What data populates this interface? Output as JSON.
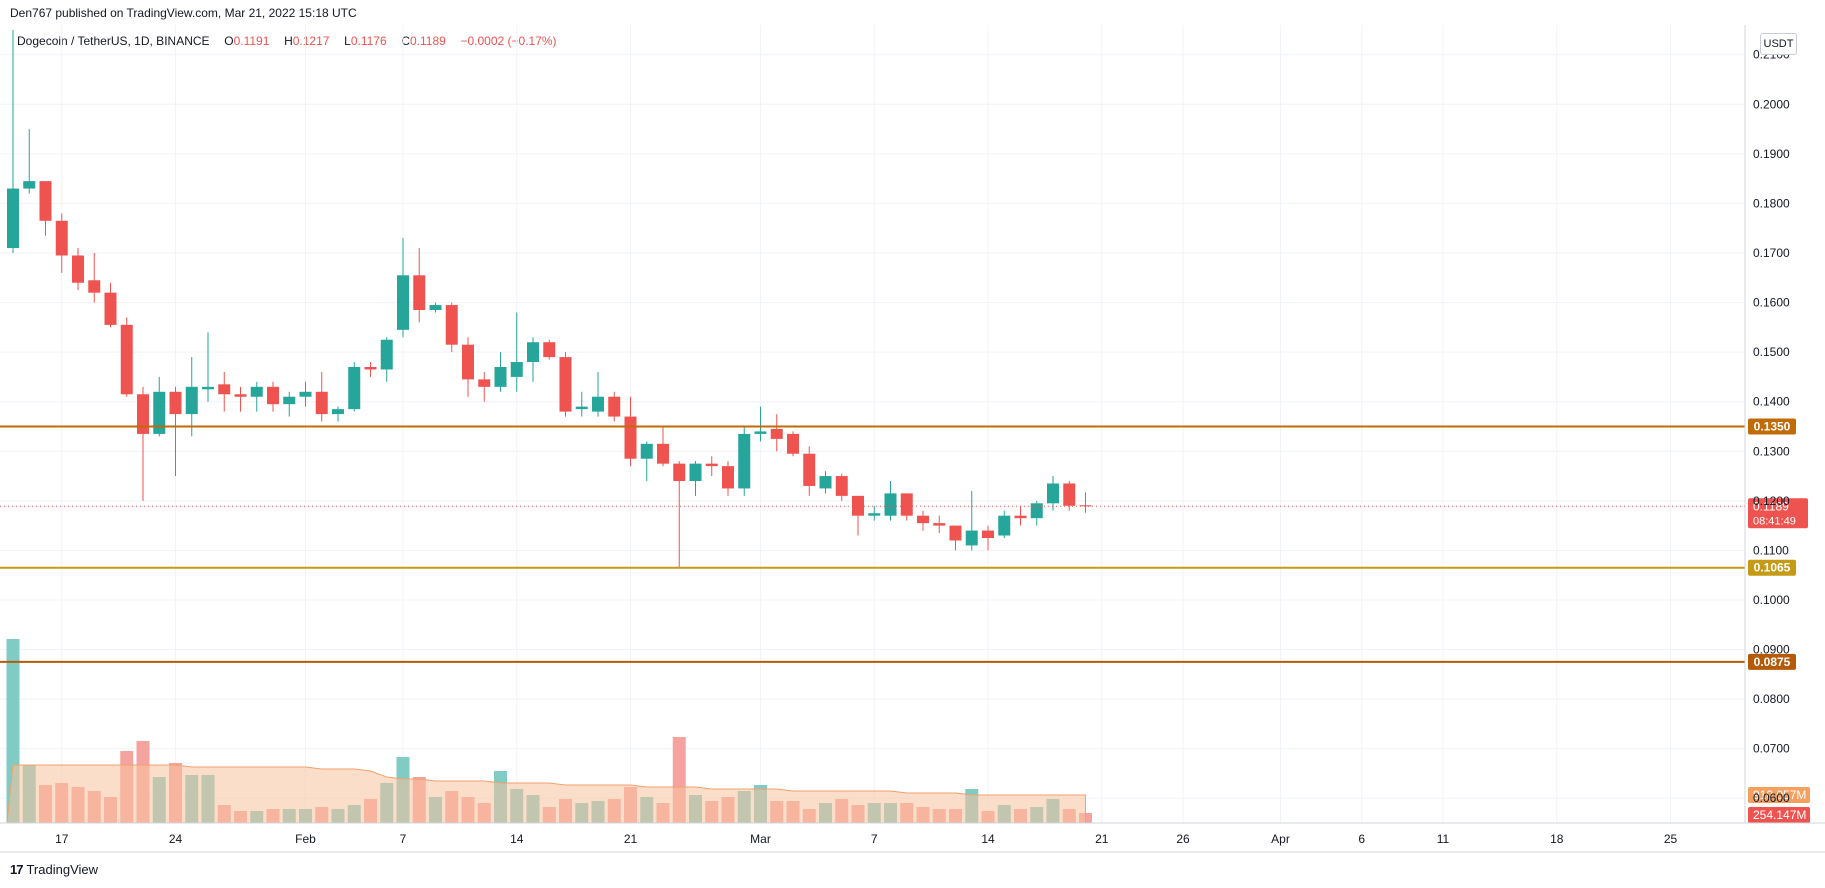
{
  "header": {
    "credit": "Den767 published on TradingView.com, Mar 21, 2022 15:18 UTC"
  },
  "legend": {
    "symbol": "Dogecoin / TetherUS, 1D, BINANCE",
    "open_label": "O",
    "open": "0.1191",
    "high_label": "H",
    "high": "0.1217",
    "low_label": "L",
    "low": "0.1176",
    "close_label": "C",
    "close": "0.1189",
    "change": "−0.0002 (−0.17%)"
  },
  "currency": "USDT",
  "footer": {
    "logo": "17",
    "brand": "TradingView"
  },
  "colors": {
    "up": "#26a69a",
    "down": "#ef5350",
    "up_volume": "#80cbc4",
    "down_volume": "#f5a39f",
    "volume_ma": "#f7c29f",
    "level_orange": "#c06b06",
    "level_gold": "#c59a14",
    "price_line": "#ef5350",
    "grid": "#f0f3fa"
  },
  "chart_data": {
    "type": "candlestick",
    "title": "Dogecoin / TetherUS, 1D, BINANCE",
    "y_axis": {
      "range": [
        0.055,
        0.216
      ],
      "ticks": [
        "0.2100",
        "0.2000",
        "0.1900",
        "0.1800",
        "0.1700",
        "0.1600",
        "0.1500",
        "0.1400",
        "0.1300",
        "0.1200",
        "0.1100",
        "0.1000",
        "0.0900",
        "0.0800",
        "0.0700",
        "0.0600"
      ],
      "tick_values": [
        0.21,
        0.2,
        0.19,
        0.18,
        0.17,
        0.16,
        0.15,
        0.14,
        0.13,
        0.12,
        0.11,
        0.1,
        0.09,
        0.08,
        0.07,
        0.06
      ]
    },
    "x_axis": {
      "labels": [
        "17",
        "24",
        "Feb",
        "7",
        "14",
        "21",
        "Mar",
        "7",
        "14",
        "21",
        "26",
        "Apr",
        "6",
        "11",
        "18",
        "25"
      ],
      "label_days": [
        3,
        10,
        18,
        24,
        31,
        38,
        46,
        53,
        60,
        67,
        72,
        78,
        83,
        88,
        95,
        102
      ]
    },
    "candles": [
      [
        0.171,
        0.215,
        0.17,
        0.183
      ],
      [
        0.183,
        0.195,
        0.182,
        0.1845
      ],
      [
        0.1845,
        0.1845,
        0.1735,
        0.1765
      ],
      [
        0.1765,
        0.178,
        0.166,
        0.1695
      ],
      [
        0.1695,
        0.171,
        0.1625,
        0.164
      ],
      [
        0.1645,
        0.17,
        0.16,
        0.162
      ],
      [
        0.162,
        0.164,
        0.155,
        0.1555
      ],
      [
        0.1555,
        0.157,
        0.141,
        0.1415
      ],
      [
        0.1415,
        0.143,
        0.12,
        0.1335
      ],
      [
        0.1335,
        0.145,
        0.133,
        0.142
      ],
      [
        0.142,
        0.143,
        0.125,
        0.1375
      ],
      [
        0.1375,
        0.149,
        0.133,
        0.143
      ],
      [
        0.1425,
        0.154,
        0.14,
        0.143
      ],
      [
        0.1435,
        0.146,
        0.138,
        0.1415
      ],
      [
        0.1415,
        0.143,
        0.138,
        0.141
      ],
      [
        0.141,
        0.144,
        0.138,
        0.143
      ],
      [
        0.143,
        0.144,
        0.138,
        0.1395
      ],
      [
        0.1395,
        0.142,
        0.137,
        0.141
      ],
      [
        0.141,
        0.144,
        0.139,
        0.142
      ],
      [
        0.142,
        0.146,
        0.136,
        0.1375
      ],
      [
        0.1375,
        0.139,
        0.136,
        0.1385
      ],
      [
        0.1385,
        0.148,
        0.138,
        0.147
      ],
      [
        0.147,
        0.148,
        0.145,
        0.1465
      ],
      [
        0.1465,
        0.153,
        0.144,
        0.1525
      ],
      [
        0.1545,
        0.173,
        0.153,
        0.1655
      ],
      [
        0.1655,
        0.171,
        0.156,
        0.1585
      ],
      [
        0.1585,
        0.16,
        0.158,
        0.1595
      ],
      [
        0.1595,
        0.16,
        0.15,
        0.1515
      ],
      [
        0.1515,
        0.153,
        0.141,
        0.1445
      ],
      [
        0.1445,
        0.146,
        0.14,
        0.143
      ],
      [
        0.143,
        0.15,
        0.142,
        0.147
      ],
      [
        0.145,
        0.158,
        0.142,
        0.148
      ],
      [
        0.148,
        0.153,
        0.144,
        0.152
      ],
      [
        0.152,
        0.1525,
        0.1485,
        0.149
      ],
      [
        0.149,
        0.15,
        0.137,
        0.138
      ],
      [
        0.1385,
        0.142,
        0.137,
        0.139
      ],
      [
        0.138,
        0.146,
        0.137,
        0.141
      ],
      [
        0.141,
        0.142,
        0.136,
        0.137
      ],
      [
        0.137,
        0.141,
        0.127,
        0.1285
      ],
      [
        0.1285,
        0.132,
        0.124,
        0.1315
      ],
      [
        0.1315,
        0.135,
        0.127,
        0.1275
      ],
      [
        0.1275,
        0.128,
        0.1065,
        0.124
      ],
      [
        0.124,
        0.128,
        0.121,
        0.1275
      ],
      [
        0.1275,
        0.129,
        0.125,
        0.127
      ],
      [
        0.127,
        0.128,
        0.121,
        0.1225
      ],
      [
        0.1225,
        0.135,
        0.121,
        0.1335
      ],
      [
        0.1335,
        0.139,
        0.132,
        0.134
      ],
      [
        0.1345,
        0.1375,
        0.13,
        0.1325
      ],
      [
        0.1335,
        0.134,
        0.129,
        0.1295
      ],
      [
        0.1295,
        0.131,
        0.121,
        0.123
      ],
      [
        0.1225,
        0.126,
        0.1215,
        0.125
      ],
      [
        0.125,
        0.1255,
        0.12,
        0.121
      ],
      [
        0.121,
        0.121,
        0.113,
        0.117
      ],
      [
        0.117,
        0.119,
        0.116,
        0.1175
      ],
      [
        0.117,
        0.124,
        0.116,
        0.1215
      ],
      [
        0.1215,
        0.1215,
        0.116,
        0.117
      ],
      [
        0.117,
        0.118,
        0.114,
        0.1155
      ],
      [
        0.1155,
        0.117,
        0.1135,
        0.115
      ],
      [
        0.115,
        0.115,
        0.11,
        0.112
      ],
      [
        0.111,
        0.122,
        0.11,
        0.114
      ],
      [
        0.114,
        0.115,
        0.11,
        0.1125
      ],
      [
        0.113,
        0.118,
        0.1125,
        0.117
      ],
      [
        0.117,
        0.119,
        0.115,
        0.1165
      ],
      [
        0.1165,
        0.12,
        0.115,
        0.1195
      ],
      [
        0.1195,
        0.125,
        0.118,
        0.1235
      ],
      [
        0.1235,
        0.124,
        0.118,
        0.119
      ],
      [
        0.1191,
        0.1217,
        0.1176,
        0.1189
      ]
    ],
    "volume": {
      "label_ma": "910.057M",
      "label_last": "254.147M",
      "relative_heights": [
        0.92,
        0.29,
        0.19,
        0.2,
        0.18,
        0.16,
        0.13,
        0.36,
        0.41,
        0.23,
        0.3,
        0.24,
        0.24,
        0.09,
        0.06,
        0.06,
        0.07,
        0.07,
        0.07,
        0.08,
        0.07,
        0.09,
        0.12,
        0.2,
        0.33,
        0.23,
        0.13,
        0.16,
        0.13,
        0.1,
        0.26,
        0.17,
        0.14,
        0.08,
        0.12,
        0.1,
        0.11,
        0.12,
        0.18,
        0.13,
        0.1,
        0.43,
        0.14,
        0.11,
        0.13,
        0.16,
        0.19,
        0.11,
        0.11,
        0.07,
        0.1,
        0.12,
        0.09,
        0.1,
        0.1,
        0.1,
        0.08,
        0.07,
        0.07,
        0.17,
        0.06,
        0.09,
        0.07,
        0.08,
        0.12,
        0.07,
        0.05
      ],
      "ma_relative": [
        0.29,
        0.29,
        0.29,
        0.29,
        0.29,
        0.29,
        0.29,
        0.29,
        0.29,
        0.29,
        0.29,
        0.28,
        0.28,
        0.28,
        0.28,
        0.28,
        0.28,
        0.28,
        0.28,
        0.27,
        0.27,
        0.27,
        0.26,
        0.23,
        0.22,
        0.22,
        0.21,
        0.21,
        0.21,
        0.21,
        0.2,
        0.2,
        0.2,
        0.2,
        0.19,
        0.19,
        0.19,
        0.19,
        0.19,
        0.18,
        0.18,
        0.18,
        0.18,
        0.17,
        0.17,
        0.17,
        0.17,
        0.17,
        0.16,
        0.16,
        0.16,
        0.16,
        0.16,
        0.16,
        0.16,
        0.15,
        0.15,
        0.15,
        0.15,
        0.14,
        0.14,
        0.14,
        0.14,
        0.14,
        0.14,
        0.14,
        0.14
      ]
    },
    "levels": [
      {
        "value": 0.135,
        "label": "0.1350",
        "color": "#c06b06"
      },
      {
        "value": 0.1065,
        "label": "0.1065",
        "color": "#c59a14"
      },
      {
        "value": 0.0875,
        "label": "0.0875",
        "color": "#b45a09"
      }
    ],
    "last_price": {
      "value": 0.1189,
      "label": "0.1189",
      "countdown": "08:41:49"
    },
    "grid": true,
    "legend_position": "top-left"
  }
}
